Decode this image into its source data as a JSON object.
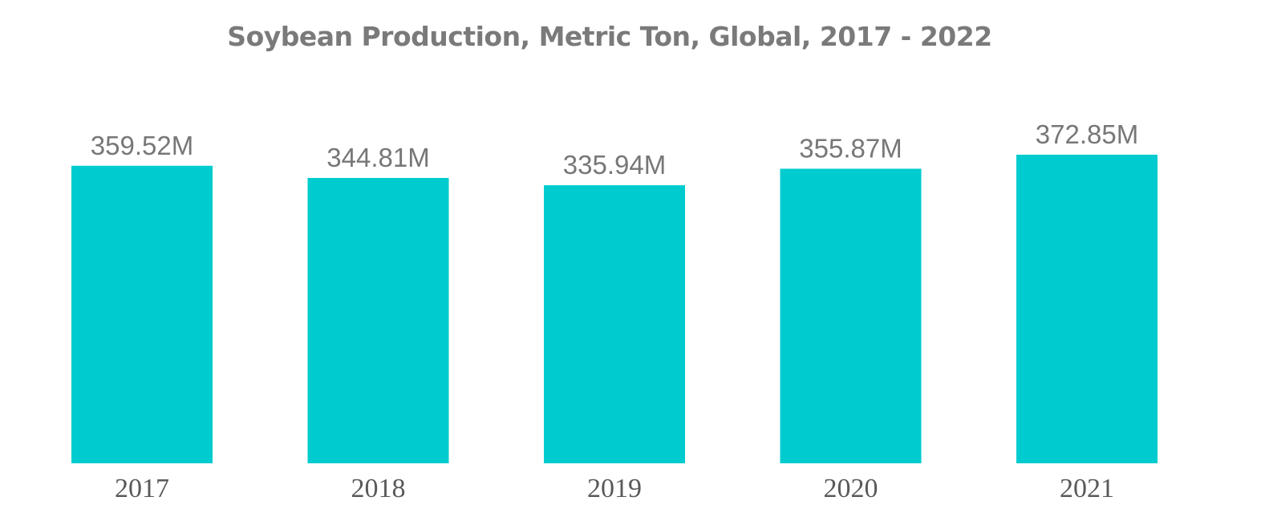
{
  "chart_data": {
    "type": "bar",
    "title": "Soybean Production, Metric Ton, Global, 2017 - 2022",
    "categories": [
      "2017",
      "2018",
      "2019",
      "2020",
      "2021"
    ],
    "values": [
      359.52,
      344.81,
      335.94,
      355.87,
      372.85
    ],
    "value_labels": [
      "359.52M",
      "344.81M",
      "335.94M",
      "355.87M",
      "372.85M"
    ],
    "unit": "M",
    "xlabel": "",
    "ylabel": "",
    "ylim": [
      0,
      372.85
    ],
    "grid": false,
    "legend": "none",
    "bar_color": "#00cccf"
  }
}
